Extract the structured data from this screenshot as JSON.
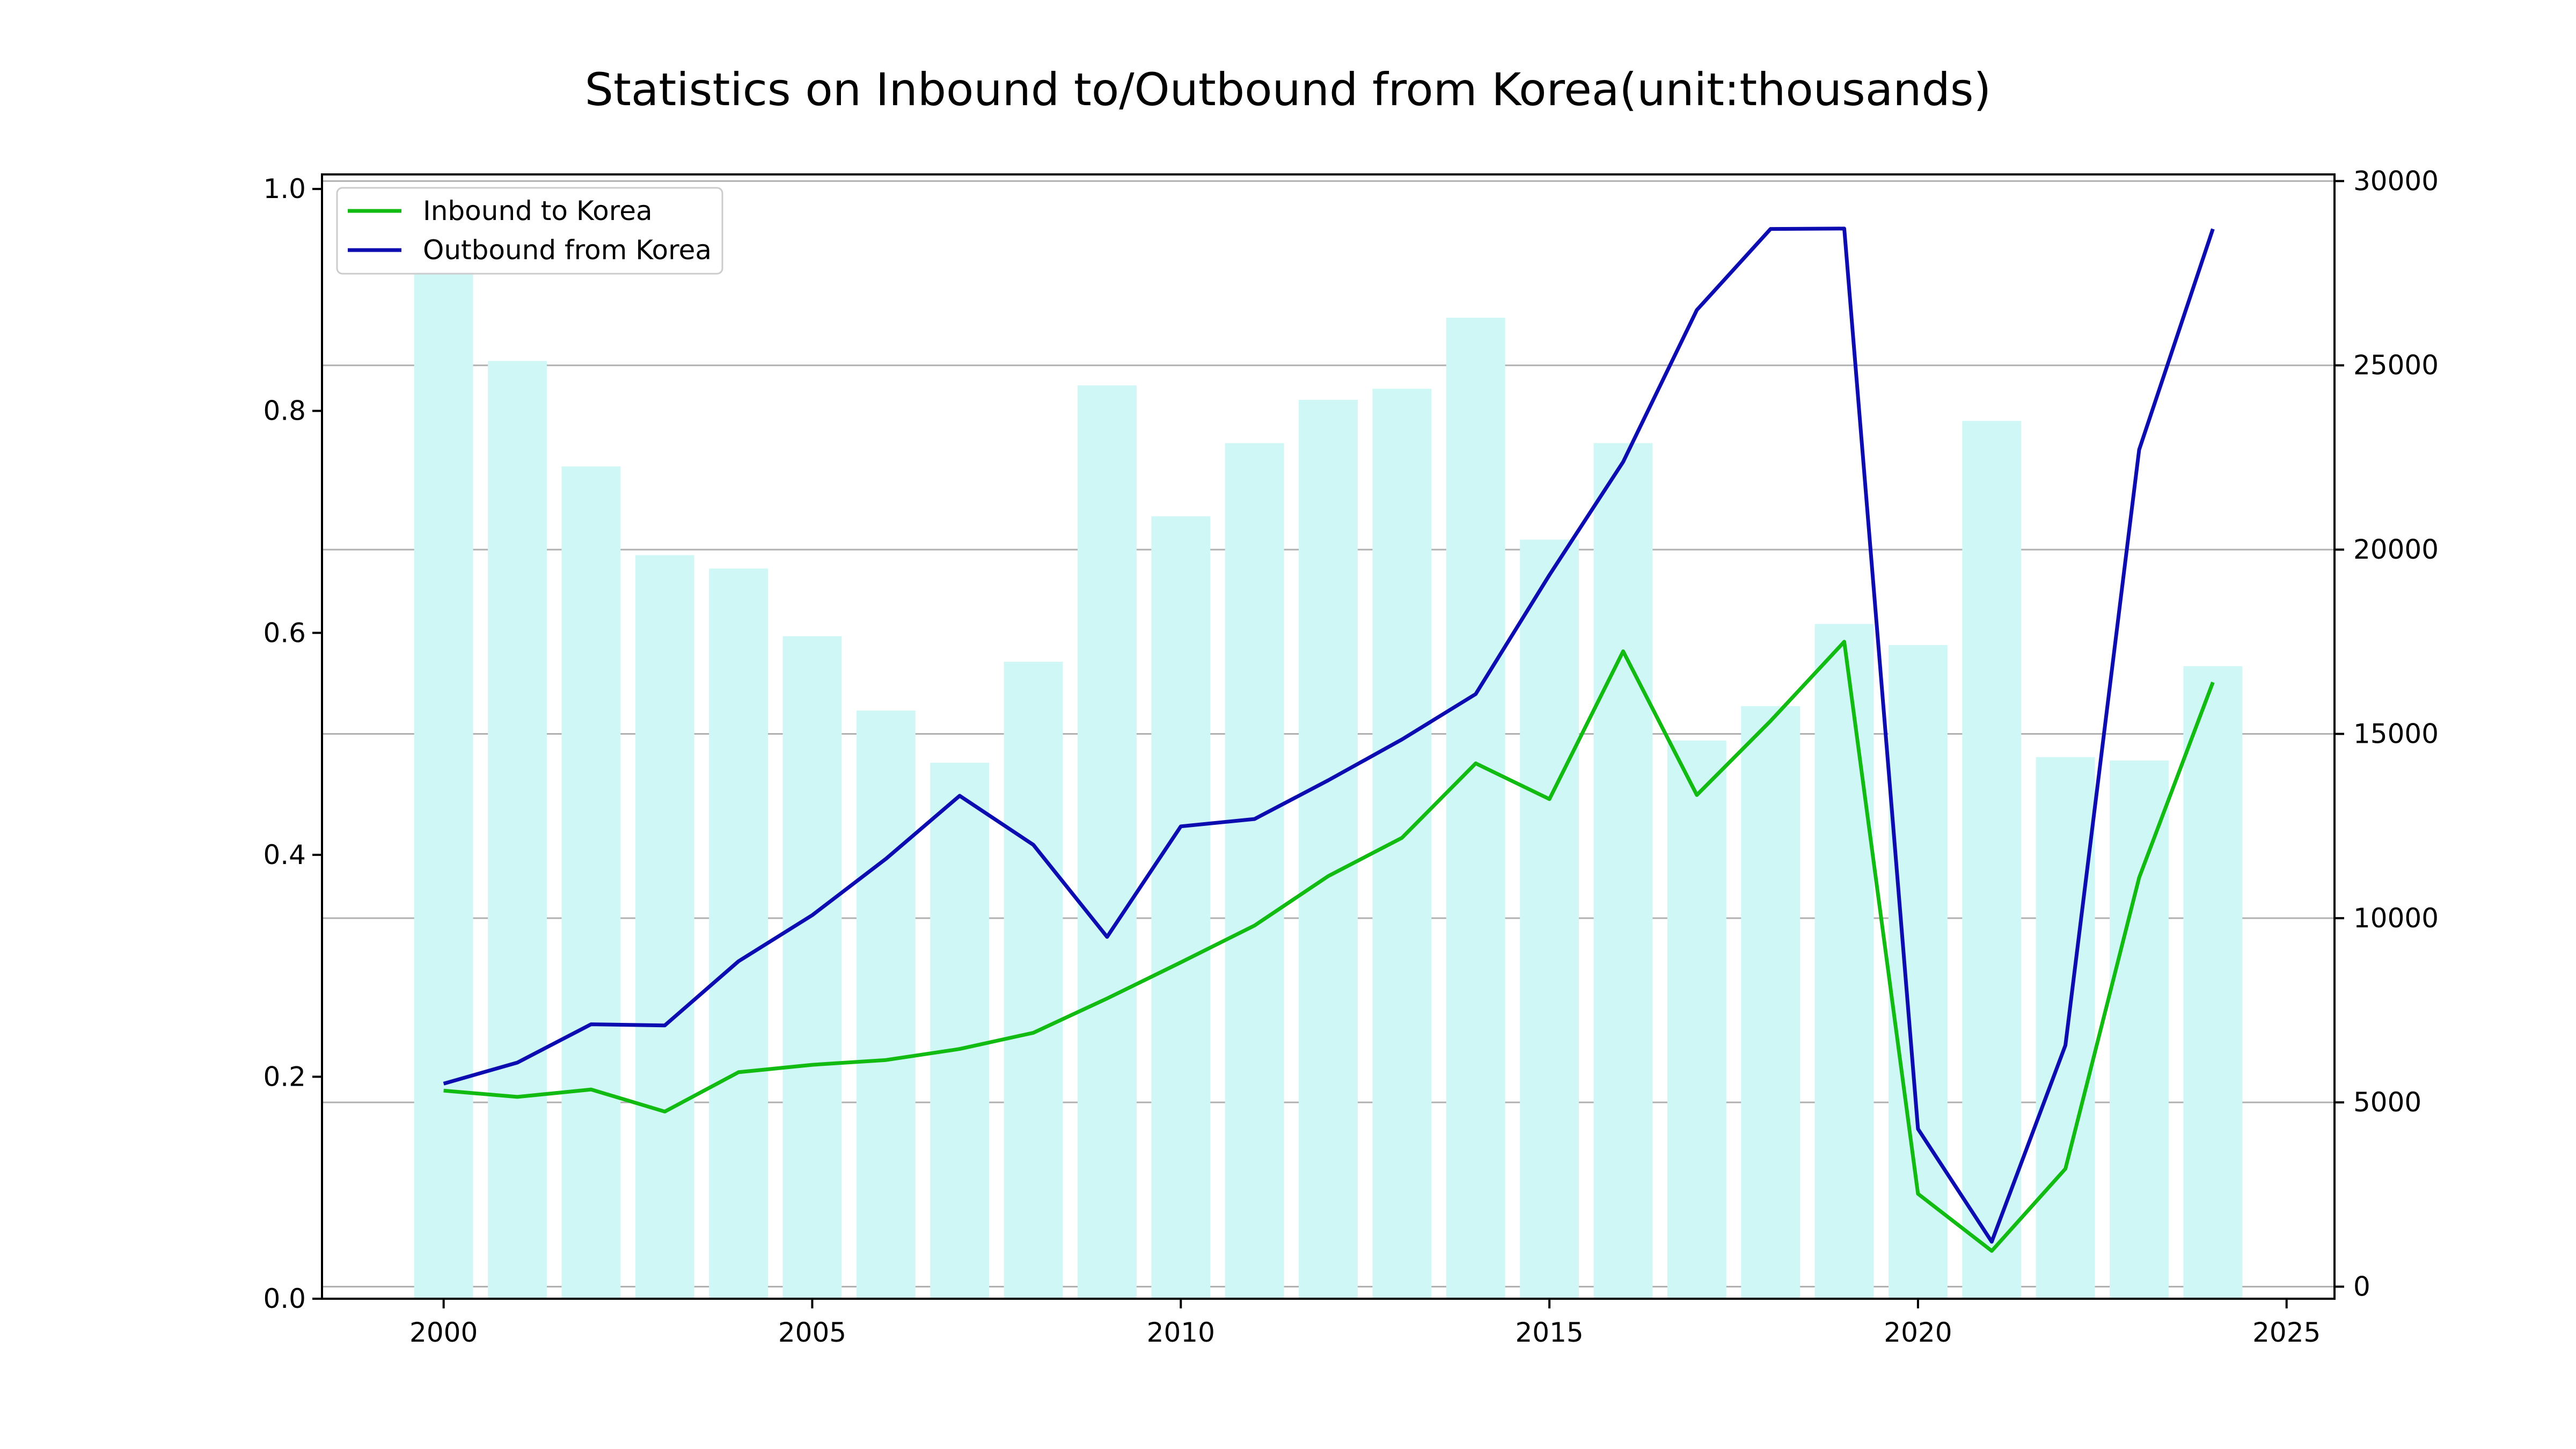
{
  "chart_data": {
    "type": "bar",
    "title": "Statistics on Inbound to/Outbound from Korea(unit:thousands)",
    "xlabel": "",
    "ylabel_left": "",
    "ylabel_right": "",
    "x_ticks": [
      "2000",
      "2005",
      "2010",
      "2015",
      "2020",
      "2025"
    ],
    "y_left_ticks": [
      "0.0",
      "0.2",
      "0.4",
      "0.6",
      "0.8",
      "1.0"
    ],
    "y_right_ticks": [
      "0",
      "5000",
      "10000",
      "15000",
      "20000",
      "25000",
      "30000"
    ],
    "x_range": [
      1998.35,
      2025.65
    ],
    "y_left_range": [
      0,
      1.0131
    ],
    "y_right_range": [
      -327,
      30180
    ],
    "grid": "horizontal, right axis",
    "legend_position": "top-left",
    "years": [
      2000,
      2001,
      2002,
      2003,
      2004,
      2005,
      2006,
      2007,
      2008,
      2009,
      2010,
      2011,
      2012,
      2013,
      2014,
      2015,
      2016,
      2017,
      2018,
      2019,
      2020,
      2021,
      2022,
      2023,
      2024
    ],
    "bars": {
      "axis": "left",
      "values": [
        0.925,
        0.845,
        0.75,
        0.67,
        0.658,
        0.597,
        0.53,
        0.483,
        0.574,
        0.823,
        0.705,
        0.771,
        0.81,
        0.82,
        0.884,
        0.684,
        0.771,
        0.503,
        0.534,
        0.608,
        0.589,
        0.791,
        0.488,
        0.485,
        0.57
      ]
    },
    "series": [
      {
        "name": "Inbound to Korea",
        "axis": "right",
        "values": [
          5320,
          5150,
          5350,
          4750,
          5820,
          6020,
          6150,
          6450,
          6890,
          7820,
          8800,
          9800,
          11140,
          12180,
          14200,
          13230,
          17240,
          13340,
          15350,
          17500,
          2520,
          970,
          3200,
          11100,
          16400
        ]
      },
      {
        "name": "Outbound from Korea",
        "axis": "right",
        "values": [
          5510,
          6080,
          7120,
          7090,
          8830,
          10080,
          11610,
          13320,
          11990,
          9490,
          12490,
          12690,
          13740,
          14850,
          16080,
          19310,
          22380,
          26500,
          28700,
          28710,
          4280,
          1220,
          6550,
          22710,
          28700
        ]
      }
    ],
    "colors": {
      "bars": "#cff7f6",
      "inbound": "#12bb12",
      "outbound": "#0c0cb0",
      "grid": "#b0b0b0",
      "axis": "#000000"
    }
  }
}
